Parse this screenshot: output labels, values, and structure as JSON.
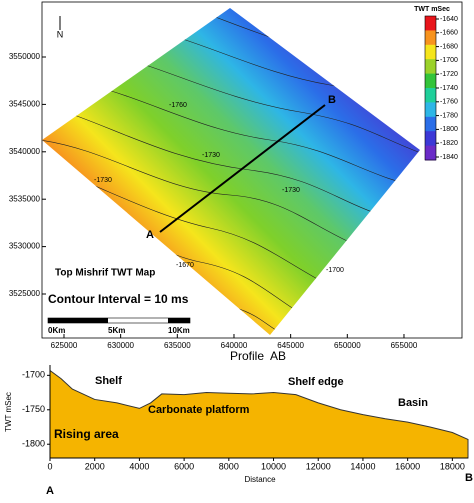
{
  "chart_data": [
    {
      "type": "contour",
      "title": "Top Mishrif TWT Map",
      "annotation": "Contour Interval = 10 ms",
      "north": "N",
      "scale_bar": [
        "0Km",
        "5Km",
        "10Km"
      ],
      "profile_line": [
        "A",
        "B"
      ],
      "xlim": [
        623060,
        660120
      ],
      "ylim": [
        3520360,
        3555800
      ],
      "xticks": [
        625000,
        630000,
        635000,
        640000,
        645000,
        650000,
        655000
      ],
      "yticks": [
        3525000,
        3530000,
        3535000,
        3540000,
        3545000,
        3550000
      ],
      "contour_labels": [
        -1760,
        -1730,
        -1730,
        -1730,
        -1700,
        -1670
      ],
      "colorbar": {
        "label": "TWT mSec",
        "ticks": [
          -1640,
          -1660,
          -1680,
          -1700,
          -1720,
          -1740,
          -1760,
          -1780,
          -1800,
          -1820,
          -1840
        ],
        "colors": [
          "#e8151b",
          "#f7931e",
          "#f5e51c",
          "#9bd22a",
          "#33c43a",
          "#1fcf9a",
          "#2eb6e6",
          "#2b6ee8",
          "#3c38d6",
          "#6b2bc7"
        ]
      }
    },
    {
      "type": "area",
      "title": "Profile  AB",
      "xlabel": "Distance",
      "ylabel": "TWT mSec",
      "endpoints": [
        "A",
        "B"
      ],
      "annotations": [
        "Shelf",
        "Shelf edge",
        "Carbonate platform",
        "Basin",
        "Rising area"
      ],
      "color": "#f5b400",
      "x": [
        0,
        500,
        1000,
        2000,
        3000,
        4000,
        4500,
        5000,
        6000,
        7000,
        8000,
        9000,
        10000,
        11000,
        12000,
        13000,
        14000,
        15000,
        16000,
        17000,
        18000,
        18700
      ],
      "values": [
        -1693,
        -1705,
        -1720,
        -1735,
        -1740,
        -1748,
        -1740,
        -1727,
        -1728,
        -1725,
        -1726,
        -1727,
        -1725,
        -1728,
        -1740,
        -1750,
        -1757,
        -1763,
        -1768,
        -1775,
        -1783,
        -1793
      ],
      "xlim": [
        0,
        18700
      ],
      "ylim": [
        -1820,
        -1685
      ],
      "xticks": [
        0,
        2000,
        4000,
        6000,
        8000,
        10000,
        12000,
        14000,
        16000,
        18000
      ],
      "yticks": [
        -1700,
        -1750,
        -1800
      ]
    }
  ]
}
